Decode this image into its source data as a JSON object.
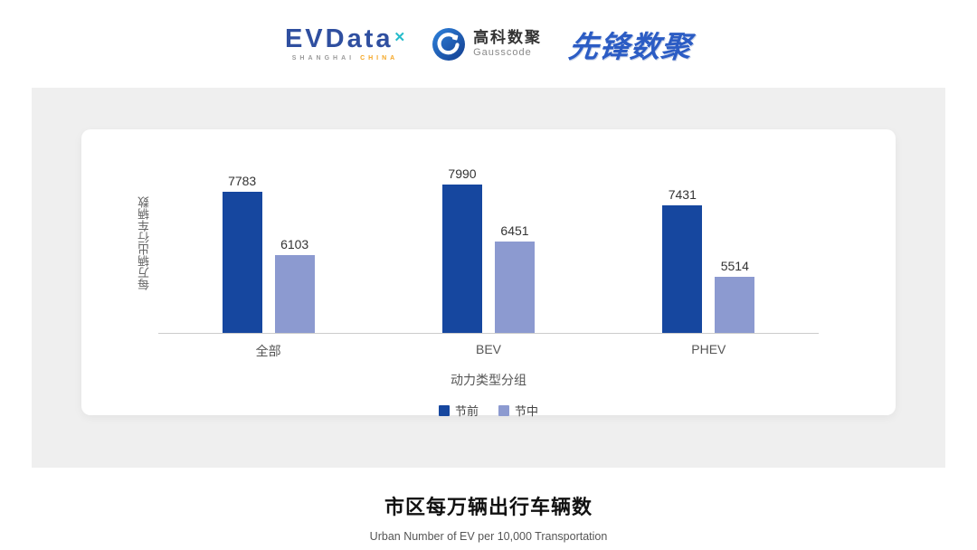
{
  "header": {
    "evdata_logo": {
      "text": "EVData",
      "mark": "✕",
      "sub_left": "SHANGHAI",
      "sub_right": "CHINA"
    },
    "gausscode_logo": {
      "cn": "高科数聚",
      "en": "Gausscode"
    },
    "pioneer_logo": {
      "text": "先锋数聚"
    }
  },
  "chart_data": {
    "type": "bar",
    "categories": [
      "全部",
      "BEV",
      "PHEV"
    ],
    "series": [
      {
        "name": "节前",
        "color": "#16479F",
        "values": [
          7783,
          7990,
          7431
        ]
      },
      {
        "name": "节中",
        "color": "#8C9AD0",
        "values": [
          6103,
          6451,
          5514
        ]
      }
    ],
    "title": "",
    "xlabel": "动力类型分组",
    "ylabel": "每万辆出行车辆数",
    "ylim": [
      4000,
      8500
    ],
    "grid": false,
    "legend_position": "bottom",
    "value_labels": true
  },
  "caption": {
    "title": "市区每万辆出行车辆数",
    "subtitle": "Urban Number of EV per 10,000 Transportation"
  },
  "colors": {
    "series_pre_holiday": "#16479F",
    "series_mid_holiday": "#8C9AD0",
    "panel_background": "#EFEFEF",
    "axis_line": "#CCCCCC",
    "evdata_blue": "#2F4FA0",
    "evdata_teal": "#25BCCB",
    "china_orange": "#F5A623",
    "pioneer_blue": "#2B5CC4"
  }
}
